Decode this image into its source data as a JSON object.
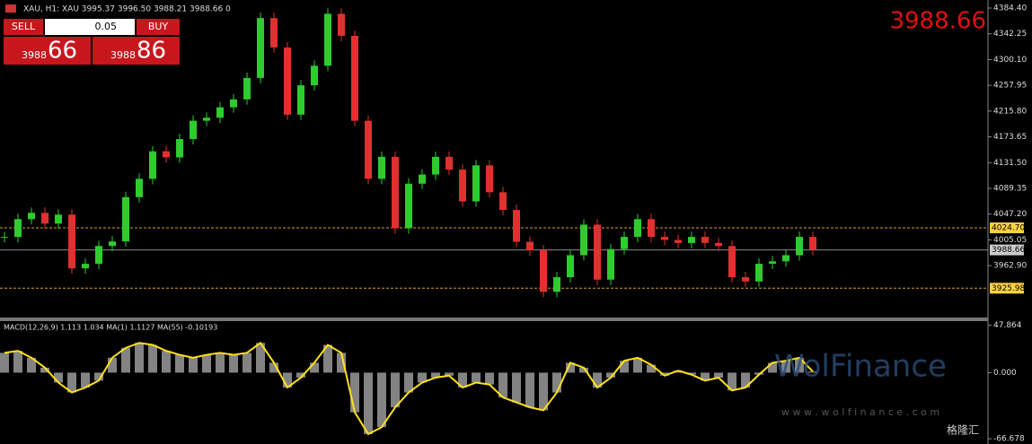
{
  "header": {
    "symbol_line": "XAU, H1:  XAU  3995.37 3996.50 3988.21 3988.66  0",
    "big_price": "3988.66"
  },
  "trade_panel": {
    "sell": "SELL",
    "lot": "0.05",
    "buy": "BUY",
    "sell_big": "3988",
    "sell_small": "66",
    "buy_big": "3988",
    "buy_small": "86"
  },
  "price_chart": {
    "ylim": [
      3878.0,
      4397.6
    ],
    "yticks": [
      {
        "value": 4384.4,
        "label": "4384.40"
      },
      4342.25,
      {
        "value": 4300.1,
        "label": "4300.10"
      },
      4257.95,
      {
        "value": 4215.8,
        "label": "4215.80"
      },
      4173.65,
      {
        "value": 4131.5,
        "label": "4131.50"
      },
      4089.35,
      {
        "value": 4047.2,
        "label": "4047.20"
      },
      4005.05,
      {
        "value": 3962.9,
        "label": "3962.90"
      }
    ],
    "levels": [
      {
        "value": 4024.7,
        "label": "4024.70",
        "color": "#d9a032"
      },
      {
        "value": 3988.66,
        "label": "3988.66",
        "color": "#8a8a8a"
      },
      {
        "value": 3925.98,
        "label": "3925.98",
        "color": "#d9a032"
      }
    ],
    "closes": [
      4009.8,
      4039,
      4049.3,
      4031.7,
      4046.4,
      3958.5,
      3965.9,
      3995.1,
      4002.5,
      4075,
      4105,
      4150,
      4140,
      4170,
      4200,
      4205,
      4222,
      4235,
      4270,
      4368,
      4320,
      4210,
      4258,
      4290,
      4375,
      4339,
      4200,
      4105,
      4141,
      4024,
      4097,
      4112,
      4141,
      4120,
      4068,
      4127,
      4083,
      4054,
      4002,
      3988,
      3920,
      3944,
      3980,
      4030,
      3940,
      3990,
      4010,
      4039,
      4010,
      4005,
      4000,
      4010,
      4000,
      3995,
      3944,
      3937,
      3966,
      3970,
      3980,
      4010,
      3988.66
    ]
  },
  "macd": {
    "label": "MACD(12,26,9) 1.113 1.034 MA(1) 1.1127 MA(55) -0.10193",
    "ylim": [
      -72,
      52
    ],
    "yticks": [
      47.864,
      {
        "value": 0,
        "label": "0.000"
      },
      -66.678
    ],
    "values": [
      20,
      22,
      15,
      5,
      -10,
      -20,
      -15,
      -8,
      15,
      25,
      30,
      28,
      22,
      18,
      15,
      18,
      20,
      18,
      20,
      30,
      10,
      -15,
      -5,
      10,
      28,
      20,
      -40,
      -62,
      -55,
      -35,
      -20,
      -10,
      -5,
      -3,
      -15,
      -10,
      -12,
      -25,
      -30,
      -35,
      -38,
      -20,
      10,
      5,
      -15,
      -5,
      12,
      15,
      8,
      -3,
      2,
      -2,
      -8,
      -5,
      -18,
      -15,
      -2,
      10,
      12,
      15,
      1.1
    ]
  },
  "watermark": {
    "brand": "WolFinance",
    "site": "w w w . w o l f i n a n c e . c o m",
    "source": "格隆汇"
  }
}
